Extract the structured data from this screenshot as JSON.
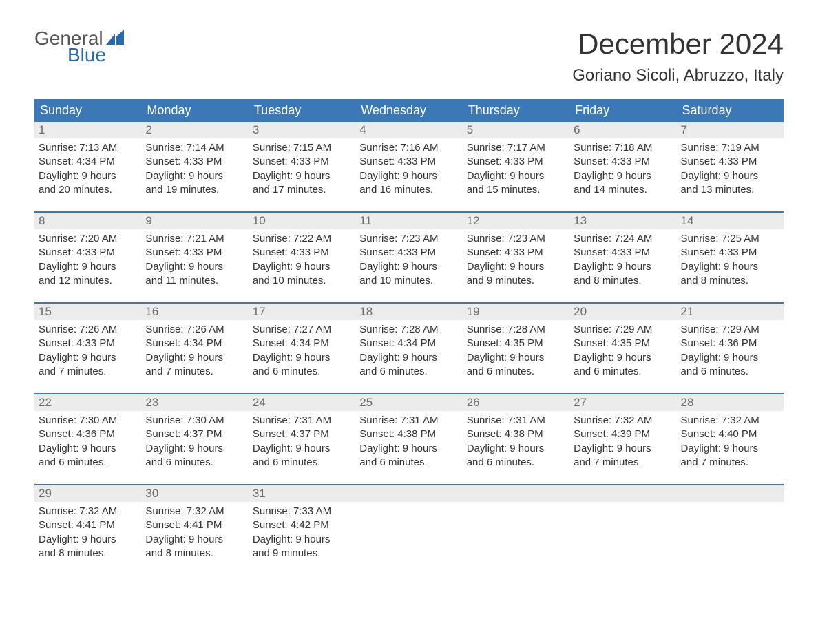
{
  "brand": {
    "general": "General",
    "blue": "Blue",
    "icon_color": "#2a69ad"
  },
  "title": {
    "month": "December 2024",
    "location": "Goriano Sicoli, Abruzzo, Italy"
  },
  "colors": {
    "header_bg": "#3b78b5",
    "header_text": "#ffffff",
    "daynum_bg": "#ececec",
    "daynum_text": "#6a6a6a",
    "body_text": "#333333",
    "rule": "#3b78b5",
    "page_bg": "#ffffff"
  },
  "dow": [
    "Sunday",
    "Monday",
    "Tuesday",
    "Wednesday",
    "Thursday",
    "Friday",
    "Saturday"
  ],
  "weeks": [
    [
      {
        "n": "1",
        "sr": "Sunrise: 7:13 AM",
        "ss": "Sunset: 4:34 PM",
        "d1": "Daylight: 9 hours",
        "d2": "and 20 minutes."
      },
      {
        "n": "2",
        "sr": "Sunrise: 7:14 AM",
        "ss": "Sunset: 4:33 PM",
        "d1": "Daylight: 9 hours",
        "d2": "and 19 minutes."
      },
      {
        "n": "3",
        "sr": "Sunrise: 7:15 AM",
        "ss": "Sunset: 4:33 PM",
        "d1": "Daylight: 9 hours",
        "d2": "and 17 minutes."
      },
      {
        "n": "4",
        "sr": "Sunrise: 7:16 AM",
        "ss": "Sunset: 4:33 PM",
        "d1": "Daylight: 9 hours",
        "d2": "and 16 minutes."
      },
      {
        "n": "5",
        "sr": "Sunrise: 7:17 AM",
        "ss": "Sunset: 4:33 PM",
        "d1": "Daylight: 9 hours",
        "d2": "and 15 minutes."
      },
      {
        "n": "6",
        "sr": "Sunrise: 7:18 AM",
        "ss": "Sunset: 4:33 PM",
        "d1": "Daylight: 9 hours",
        "d2": "and 14 minutes."
      },
      {
        "n": "7",
        "sr": "Sunrise: 7:19 AM",
        "ss": "Sunset: 4:33 PM",
        "d1": "Daylight: 9 hours",
        "d2": "and 13 minutes."
      }
    ],
    [
      {
        "n": "8",
        "sr": "Sunrise: 7:20 AM",
        "ss": "Sunset: 4:33 PM",
        "d1": "Daylight: 9 hours",
        "d2": "and 12 minutes."
      },
      {
        "n": "9",
        "sr": "Sunrise: 7:21 AM",
        "ss": "Sunset: 4:33 PM",
        "d1": "Daylight: 9 hours",
        "d2": "and 11 minutes."
      },
      {
        "n": "10",
        "sr": "Sunrise: 7:22 AM",
        "ss": "Sunset: 4:33 PM",
        "d1": "Daylight: 9 hours",
        "d2": "and 10 minutes."
      },
      {
        "n": "11",
        "sr": "Sunrise: 7:23 AM",
        "ss": "Sunset: 4:33 PM",
        "d1": "Daylight: 9 hours",
        "d2": "and 10 minutes."
      },
      {
        "n": "12",
        "sr": "Sunrise: 7:23 AM",
        "ss": "Sunset: 4:33 PM",
        "d1": "Daylight: 9 hours",
        "d2": "and 9 minutes."
      },
      {
        "n": "13",
        "sr": "Sunrise: 7:24 AM",
        "ss": "Sunset: 4:33 PM",
        "d1": "Daylight: 9 hours",
        "d2": "and 8 minutes."
      },
      {
        "n": "14",
        "sr": "Sunrise: 7:25 AM",
        "ss": "Sunset: 4:33 PM",
        "d1": "Daylight: 9 hours",
        "d2": "and 8 minutes."
      }
    ],
    [
      {
        "n": "15",
        "sr": "Sunrise: 7:26 AM",
        "ss": "Sunset: 4:33 PM",
        "d1": "Daylight: 9 hours",
        "d2": "and 7 minutes."
      },
      {
        "n": "16",
        "sr": "Sunrise: 7:26 AM",
        "ss": "Sunset: 4:34 PM",
        "d1": "Daylight: 9 hours",
        "d2": "and 7 minutes."
      },
      {
        "n": "17",
        "sr": "Sunrise: 7:27 AM",
        "ss": "Sunset: 4:34 PM",
        "d1": "Daylight: 9 hours",
        "d2": "and 6 minutes."
      },
      {
        "n": "18",
        "sr": "Sunrise: 7:28 AM",
        "ss": "Sunset: 4:34 PM",
        "d1": "Daylight: 9 hours",
        "d2": "and 6 minutes."
      },
      {
        "n": "19",
        "sr": "Sunrise: 7:28 AM",
        "ss": "Sunset: 4:35 PM",
        "d1": "Daylight: 9 hours",
        "d2": "and 6 minutes."
      },
      {
        "n": "20",
        "sr": "Sunrise: 7:29 AM",
        "ss": "Sunset: 4:35 PM",
        "d1": "Daylight: 9 hours",
        "d2": "and 6 minutes."
      },
      {
        "n": "21",
        "sr": "Sunrise: 7:29 AM",
        "ss": "Sunset: 4:36 PM",
        "d1": "Daylight: 9 hours",
        "d2": "and 6 minutes."
      }
    ],
    [
      {
        "n": "22",
        "sr": "Sunrise: 7:30 AM",
        "ss": "Sunset: 4:36 PM",
        "d1": "Daylight: 9 hours",
        "d2": "and 6 minutes."
      },
      {
        "n": "23",
        "sr": "Sunrise: 7:30 AM",
        "ss": "Sunset: 4:37 PM",
        "d1": "Daylight: 9 hours",
        "d2": "and 6 minutes."
      },
      {
        "n": "24",
        "sr": "Sunrise: 7:31 AM",
        "ss": "Sunset: 4:37 PM",
        "d1": "Daylight: 9 hours",
        "d2": "and 6 minutes."
      },
      {
        "n": "25",
        "sr": "Sunrise: 7:31 AM",
        "ss": "Sunset: 4:38 PM",
        "d1": "Daylight: 9 hours",
        "d2": "and 6 minutes."
      },
      {
        "n": "26",
        "sr": "Sunrise: 7:31 AM",
        "ss": "Sunset: 4:38 PM",
        "d1": "Daylight: 9 hours",
        "d2": "and 6 minutes."
      },
      {
        "n": "27",
        "sr": "Sunrise: 7:32 AM",
        "ss": "Sunset: 4:39 PM",
        "d1": "Daylight: 9 hours",
        "d2": "and 7 minutes."
      },
      {
        "n": "28",
        "sr": "Sunrise: 7:32 AM",
        "ss": "Sunset: 4:40 PM",
        "d1": "Daylight: 9 hours",
        "d2": "and 7 minutes."
      }
    ],
    [
      {
        "n": "29",
        "sr": "Sunrise: 7:32 AM",
        "ss": "Sunset: 4:41 PM",
        "d1": "Daylight: 9 hours",
        "d2": "and 8 minutes."
      },
      {
        "n": "30",
        "sr": "Sunrise: 7:32 AM",
        "ss": "Sunset: 4:41 PM",
        "d1": "Daylight: 9 hours",
        "d2": "and 8 minutes."
      },
      {
        "n": "31",
        "sr": "Sunrise: 7:33 AM",
        "ss": "Sunset: 4:42 PM",
        "d1": "Daylight: 9 hours",
        "d2": "and 9 minutes."
      },
      {
        "n": "",
        "sr": "",
        "ss": "",
        "d1": "",
        "d2": ""
      },
      {
        "n": "",
        "sr": "",
        "ss": "",
        "d1": "",
        "d2": ""
      },
      {
        "n": "",
        "sr": "",
        "ss": "",
        "d1": "",
        "d2": ""
      },
      {
        "n": "",
        "sr": "",
        "ss": "",
        "d1": "",
        "d2": ""
      }
    ]
  ]
}
